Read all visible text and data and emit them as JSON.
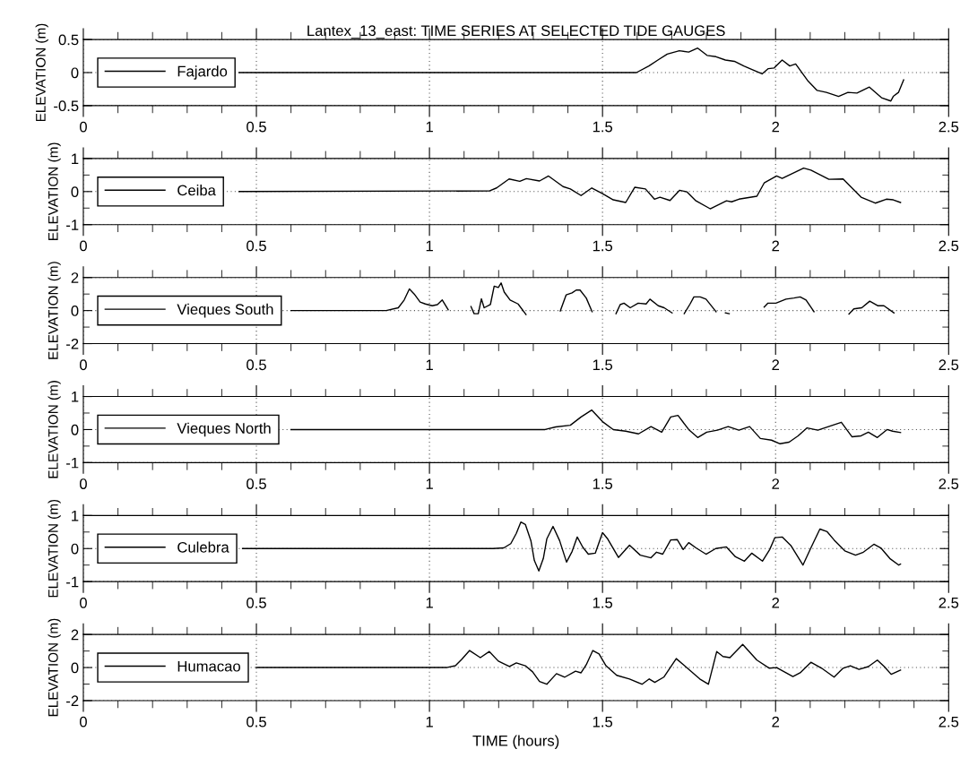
{
  "chart_data": [
    {
      "type": "line",
      "title": "Lantex_13_east: TIME SERIES AT SELECTED TIDE GAUGES",
      "ylabel": "ELEVATION (m)",
      "xlim": [
        0,
        2.5
      ],
      "ylim": [
        -0.5,
        0.5
      ],
      "xticks": [
        0,
        {
          "value": 0.1,
          "label": null
        },
        {
          "value": 0.2,
          "label": null
        },
        {
          "value": 0.3,
          "label": null
        },
        {
          "value": 0.4,
          "label": null
        },
        0.5,
        {
          "value": 0.6,
          "label": null
        },
        {
          "value": 0.7,
          "label": null
        },
        {
          "value": 0.8,
          "label": null
        },
        {
          "value": 0.9,
          "label": null
        },
        1,
        {
          "value": 1.1,
          "label": null
        },
        {
          "value": 1.2,
          "label": null
        },
        {
          "value": 1.3,
          "label": null
        },
        {
          "value": 1.4,
          "label": null
        },
        1.5,
        {
          "value": 1.6,
          "label": null
        },
        {
          "value": 1.7,
          "label": null
        },
        {
          "value": 1.8,
          "label": null
        },
        {
          "value": 1.9,
          "label": null
        },
        2,
        {
          "value": 2.1,
          "label": null
        },
        {
          "value": 2.2,
          "label": null
        },
        {
          "value": 2.3,
          "label": null
        },
        {
          "value": 2.4,
          "label": null
        },
        2.5
      ],
      "yticks": [
        -0.5,
        0,
        0.5
      ],
      "grid": true,
      "legend": "left",
      "series": [
        {
          "name": "Fajardo",
          "color": "#000000",
          "x": [
            0.45,
            1.598,
            1.634,
            1.66,
            1.687,
            1.722,
            1.749,
            1.775,
            1.802,
            1.828,
            1.855,
            1.881,
            1.908,
            1.935,
            1.961,
            1.979,
            1.996,
            2.019,
            2.041,
            2.058,
            2.094,
            2.12,
            2.147,
            2.182,
            2.209,
            2.235,
            2.271,
            2.306,
            2.333,
            2.34,
            2.355,
            2.37
          ],
          "values": [
            0,
            0,
            0.1,
            0.19,
            0.28,
            0.33,
            0.31,
            0.37,
            0.26,
            0.24,
            0.19,
            0.17,
            0.1,
            0.04,
            -0.02,
            0.06,
            0.07,
            0.19,
            0.1,
            0.13,
            -0.13,
            -0.27,
            -0.3,
            -0.36,
            -0.3,
            -0.31,
            -0.22,
            -0.38,
            -0.43,
            -0.36,
            -0.3,
            -0.11
          ]
        }
      ]
    },
    {
      "type": "line",
      "ylabel": "ELEVATION (m)",
      "xlim": [
        0,
        2.5
      ],
      "ylim": [
        -1,
        1
      ],
      "xticks": [
        0,
        {
          "value": 0.1,
          "label": null
        },
        {
          "value": 0.2,
          "label": null
        },
        {
          "value": 0.3,
          "label": null
        },
        {
          "value": 0.4,
          "label": null
        },
        0.5,
        {
          "value": 0.6,
          "label": null
        },
        {
          "value": 0.7,
          "label": null
        },
        {
          "value": 0.8,
          "label": null
        },
        {
          "value": 0.9,
          "label": null
        },
        1,
        {
          "value": 1.1,
          "label": null
        },
        {
          "value": 1.2,
          "label": null
        },
        {
          "value": 1.3,
          "label": null
        },
        {
          "value": 1.4,
          "label": null
        },
        1.5,
        {
          "value": 1.6,
          "label": null
        },
        {
          "value": 1.7,
          "label": null
        },
        {
          "value": 1.8,
          "label": null
        },
        {
          "value": 1.9,
          "label": null
        },
        2,
        {
          "value": 2.1,
          "label": null
        },
        {
          "value": 2.2,
          "label": null
        },
        {
          "value": 2.3,
          "label": null
        },
        {
          "value": 2.4,
          "label": null
        },
        2.5
      ],
      "yticks": [
        -1,
        {
          "value": -0.5,
          "label": null
        },
        0,
        {
          "value": 0.5,
          "label": null
        },
        1
      ],
      "grid": true,
      "legend": "left",
      "series": [
        {
          "name": "Ceiba",
          "color": "#000000",
          "x": [
            0.45,
            1.173,
            1.194,
            1.23,
            1.261,
            1.28,
            1.318,
            1.344,
            1.386,
            1.407,
            1.438,
            1.469,
            1.5,
            1.531,
            1.567,
            1.593,
            1.624,
            1.65,
            1.666,
            1.695,
            1.723,
            1.744,
            1.77,
            1.811,
            1.858,
            1.873,
            1.894,
            1.946,
            1.967,
            2.003,
            2.019,
            2.081,
            2.102,
            2.154,
            2.195,
            2.247,
            2.288,
            2.32,
            2.34,
            2.361
          ],
          "values": [
            0,
            0.02,
            0.11,
            0.38,
            0.31,
            0.39,
            0.32,
            0.47,
            0.15,
            0.08,
            -0.12,
            0.11,
            -0.06,
            -0.25,
            -0.33,
            0.13,
            0.08,
            -0.23,
            -0.17,
            -0.27,
            0.04,
            -0.01,
            -0.28,
            -0.52,
            -0.28,
            -0.31,
            -0.23,
            -0.14,
            0.26,
            0.47,
            0.4,
            0.71,
            0.65,
            0.37,
            0.38,
            -0.17,
            -0.35,
            -0.23,
            -0.25,
            -0.33
          ]
        }
      ]
    },
    {
      "type": "line",
      "ylabel": "ELEVATION (m)",
      "xlim": [
        0,
        2.5
      ],
      "ylim": [
        -2,
        2
      ],
      "xticks": [
        0,
        {
          "value": 0.1,
          "label": null
        },
        {
          "value": 0.2,
          "label": null
        },
        {
          "value": 0.3,
          "label": null
        },
        {
          "value": 0.4,
          "label": null
        },
        0.5,
        {
          "value": 0.6,
          "label": null
        },
        {
          "value": 0.7,
          "label": null
        },
        {
          "value": 0.8,
          "label": null
        },
        {
          "value": 0.9,
          "label": null
        },
        1,
        {
          "value": 1.1,
          "label": null
        },
        {
          "value": 1.2,
          "label": null
        },
        {
          "value": 1.3,
          "label": null
        },
        {
          "value": 1.4,
          "label": null
        },
        1.5,
        {
          "value": 1.6,
          "label": null
        },
        {
          "value": 1.7,
          "label": null
        },
        {
          "value": 1.8,
          "label": null
        },
        {
          "value": 1.9,
          "label": null
        },
        2,
        {
          "value": 2.1,
          "label": null
        },
        {
          "value": 2.2,
          "label": null
        },
        {
          "value": 2.3,
          "label": null
        },
        {
          "value": 2.4,
          "label": null
        },
        2.5
      ],
      "yticks": [
        -2,
        {
          "value": -1,
          "label": null
        },
        0,
        {
          "value": 1,
          "label": null
        },
        2
      ],
      "grid": true,
      "legend": "left",
      "series": [
        {
          "name": "Vieques South",
          "color": "#000000",
          "x": [
            0.6,
            0.875,
            0.91,
            0.927,
            0.942,
            0.956,
            0.973,
            0.988,
            1.008,
            1.023,
            1.037,
            1.054,
            1.09,
            1.12,
            1.129,
            1.141,
            1.15,
            1.158,
            1.176,
            1.187,
            1.199,
            1.207,
            1.216,
            1.233,
            1.256,
            1.279,
            1.33,
            1.378,
            1.395,
            1.412,
            1.424,
            1.435,
            1.453,
            1.47,
            1.5,
            1.539,
            1.551,
            1.562,
            1.58,
            1.603,
            1.626,
            1.637,
            1.661,
            1.678,
            1.701,
            1.72,
            1.736,
            1.753,
            1.764,
            1.782,
            1.799,
            1.828,
            1.84,
            1.855,
            1.866,
            1.9,
            1.967,
            1.978,
            2.001,
            2.03,
            2.053,
            2.071,
            2.088,
            2.111,
            2.16,
            2.212,
            2.226,
            2.249,
            2.272,
            2.296,
            2.313,
            2.342
          ],
          "values": [
            0,
            0,
            0.17,
            0.64,
            1.31,
            1.0,
            0.52,
            0.4,
            0.29,
            0.36,
            0.64,
            0.05,
            null,
            0.24,
            -0.19,
            -0.19,
            0.71,
            0.17,
            0.36,
            1.48,
            1.4,
            1.67,
            1.12,
            0.64,
            0.4,
            -0.24,
            null,
            -0.02,
            0.95,
            1.07,
            1.24,
            1.24,
            0.76,
            -0.07,
            null,
            -0.19,
            0.36,
            0.45,
            0.17,
            0.45,
            0.4,
            0.69,
            0.29,
            0.17,
            -0.14,
            null,
            -0.19,
            0.4,
            0.83,
            0.83,
            0.69,
            -0.07,
            null,
            -0.14,
            -0.19,
            null,
            0.21,
            0.45,
            0.45,
            0.69,
            0.76,
            0.83,
            0.64,
            -0.07,
            null,
            -0.21,
            0.1,
            0.17,
            0.57,
            0.29,
            0.29,
            -0.14
          ]
        }
      ]
    },
    {
      "type": "line",
      "ylabel": "ELEVATION (m)",
      "xlim": [
        0,
        2.5
      ],
      "ylim": [
        -1,
        1
      ],
      "xticks": [
        0,
        {
          "value": 0.1,
          "label": null
        },
        {
          "value": 0.2,
          "label": null
        },
        {
          "value": 0.3,
          "label": null
        },
        {
          "value": 0.4,
          "label": null
        },
        0.5,
        {
          "value": 0.6,
          "label": null
        },
        {
          "value": 0.7,
          "label": null
        },
        {
          "value": 0.8,
          "label": null
        },
        {
          "value": 0.9,
          "label": null
        },
        1,
        {
          "value": 1.1,
          "label": null
        },
        {
          "value": 1.2,
          "label": null
        },
        {
          "value": 1.3,
          "label": null
        },
        {
          "value": 1.4,
          "label": null
        },
        1.5,
        {
          "value": 1.6,
          "label": null
        },
        {
          "value": 1.7,
          "label": null
        },
        {
          "value": 1.8,
          "label": null
        },
        {
          "value": 1.9,
          "label": null
        },
        2,
        {
          "value": 2.1,
          "label": null
        },
        {
          "value": 2.2,
          "label": null
        },
        {
          "value": 2.3,
          "label": null
        },
        {
          "value": 2.4,
          "label": null
        },
        2.5
      ],
      "yticks": [
        -1,
        {
          "value": -0.5,
          "label": null
        },
        0,
        {
          "value": 0.5,
          "label": null
        },
        1
      ],
      "grid": true,
      "legend": "left",
      "series": [
        {
          "name": "Vieques North",
          "color": "#000000",
          "x": [
            0.6,
            1.334,
            1.365,
            1.407,
            1.438,
            1.469,
            1.5,
            1.531,
            1.567,
            1.604,
            1.64,
            1.671,
            1.697,
            1.718,
            1.749,
            1.775,
            1.801,
            1.832,
            1.863,
            1.894,
            1.925,
            1.956,
            1.988,
            2.013,
            2.039,
            2.065,
            2.091,
            2.122,
            2.153,
            2.19,
            2.221,
            2.247,
            2.268,
            2.294,
            2.322,
            2.338,
            2.361
          ],
          "values": [
            0,
            0,
            0.08,
            0.13,
            0.38,
            0.59,
            0.24,
            0,
            -0.05,
            -0.13,
            0.09,
            -0.08,
            0.38,
            0.43,
            0,
            -0.24,
            -0.08,
            -0.02,
            0.09,
            -0.02,
            0.09,
            -0.27,
            -0.32,
            -0.43,
            -0.38,
            -0.19,
            0.05,
            -0.02,
            0.09,
            0.22,
            -0.22,
            -0.19,
            -0.08,
            -0.24,
            0,
            -0.05,
            -0.09
          ]
        }
      ]
    },
    {
      "type": "line",
      "ylabel": "ELEVATION (m)",
      "xlim": [
        0,
        2.5
      ],
      "ylim": [
        -1,
        1
      ],
      "xticks": [
        0,
        {
          "value": 0.1,
          "label": null
        },
        {
          "value": 0.2,
          "label": null
        },
        {
          "value": 0.3,
          "label": null
        },
        {
          "value": 0.4,
          "label": null
        },
        0.5,
        {
          "value": 0.6,
          "label": null
        },
        {
          "value": 0.7,
          "label": null
        },
        {
          "value": 0.8,
          "label": null
        },
        {
          "value": 0.9,
          "label": null
        },
        1,
        {
          "value": 1.1,
          "label": null
        },
        {
          "value": 1.2,
          "label": null
        },
        {
          "value": 1.3,
          "label": null
        },
        {
          "value": 1.4,
          "label": null
        },
        1.5,
        {
          "value": 1.6,
          "label": null
        },
        {
          "value": 1.7,
          "label": null
        },
        {
          "value": 1.8,
          "label": null
        },
        {
          "value": 1.9,
          "label": null
        },
        2,
        {
          "value": 2.1,
          "label": null
        },
        {
          "value": 2.2,
          "label": null
        },
        {
          "value": 2.3,
          "label": null
        },
        {
          "value": 2.4,
          "label": null
        },
        2.5
      ],
      "yticks": [
        -1,
        {
          "value": -0.5,
          "label": null
        },
        0,
        {
          "value": 0.5,
          "label": null
        },
        1
      ],
      "grid": true,
      "legend": "left",
      "series": [
        {
          "name": "Culebra",
          "color": "#000000",
          "x": [
            0.46,
            1.184,
            1.215,
            1.235,
            1.251,
            1.264,
            1.277,
            1.293,
            1.303,
            1.316,
            1.329,
            1.339,
            1.357,
            1.376,
            1.396,
            1.412,
            1.427,
            1.443,
            1.459,
            1.479,
            1.5,
            1.515,
            1.546,
            1.578,
            1.609,
            1.64,
            1.656,
            1.674,
            1.697,
            1.716,
            1.733,
            1.749,
            1.77,
            1.799,
            1.827,
            1.858,
            1.884,
            1.91,
            1.931,
            1.962,
            1.983,
            1.998,
            2.019,
            2.045,
            2.079,
            2.102,
            2.128,
            2.149,
            2.169,
            2.2,
            2.231,
            2.252,
            2.284,
            2.304,
            2.33,
            2.356,
            2.361
          ],
          "values": [
            0,
            0,
            0.02,
            0.15,
            0.46,
            0.8,
            0.73,
            0.24,
            -0.36,
            -0.68,
            -0.3,
            0.29,
            0.67,
            0.24,
            -0.41,
            -0.09,
            0.35,
            0.04,
            -0.17,
            -0.14,
            0.48,
            0.29,
            -0.27,
            0.1,
            -0.2,
            -0.28,
            -0.11,
            -0.17,
            0.26,
            0.27,
            -0.03,
            0.18,
            0.02,
            -0.17,
            0,
            0.05,
            -0.25,
            -0.38,
            -0.14,
            -0.38,
            -0.03,
            0.33,
            0.35,
            0.08,
            -0.5,
            0.02,
            0.59,
            0.51,
            0.26,
            -0.07,
            -0.2,
            -0.12,
            0.13,
            0.02,
            -0.3,
            -0.5,
            -0.47
          ]
        }
      ]
    },
    {
      "type": "line",
      "ylabel": "ELEVATION (m)",
      "xlabel": "TIME (hours)",
      "xlim": [
        0,
        2.5
      ],
      "ylim": [
        -2,
        2
      ],
      "xticks": [
        0,
        {
          "value": 0.1,
          "label": null
        },
        {
          "value": 0.2,
          "label": null
        },
        {
          "value": 0.3,
          "label": null
        },
        {
          "value": 0.4,
          "label": null
        },
        0.5,
        {
          "value": 0.6,
          "label": null
        },
        {
          "value": 0.7,
          "label": null
        },
        {
          "value": 0.8,
          "label": null
        },
        {
          "value": 0.9,
          "label": null
        },
        1,
        {
          "value": 1.1,
          "label": null
        },
        {
          "value": 1.2,
          "label": null
        },
        {
          "value": 1.3,
          "label": null
        },
        {
          "value": 1.4,
          "label": null
        },
        1.5,
        {
          "value": 1.6,
          "label": null
        },
        {
          "value": 1.7,
          "label": null
        },
        {
          "value": 1.8,
          "label": null
        },
        {
          "value": 1.9,
          "label": null
        },
        2,
        {
          "value": 2.1,
          "label": null
        },
        {
          "value": 2.2,
          "label": null
        },
        {
          "value": 2.3,
          "label": null
        },
        {
          "value": 2.4,
          "label": null
        },
        2.5
      ],
      "yticks": [
        -2,
        {
          "value": -1,
          "label": null
        },
        0,
        {
          "value": 1,
          "label": null
        },
        2
      ],
      "grid": true,
      "legend": "left",
      "series": [
        {
          "name": "Humacao",
          "color": "#000000",
          "x": [
            0.5,
            1.049,
            1.075,
            1.093,
            1.116,
            1.147,
            1.173,
            1.199,
            1.231,
            1.251,
            1.277,
            1.298,
            1.318,
            1.339,
            1.367,
            1.391,
            1.422,
            1.438,
            1.453,
            1.472,
            1.49,
            1.51,
            1.541,
            1.578,
            1.614,
            1.635,
            1.651,
            1.677,
            1.713,
            1.734,
            1.781,
            1.806,
            1.83,
            1.848,
            1.868,
            1.905,
            1.946,
            1.982,
            2.003,
            2.05,
            2.071,
            2.102,
            2.133,
            2.169,
            2.195,
            2.216,
            2.241,
            2.268,
            2.294,
            2.314,
            2.334,
            2.361
          ],
          "values": [
            0,
            0,
            0.11,
            0.49,
            1.03,
            0.6,
            0.97,
            0.39,
            0.06,
            0.28,
            0.11,
            -0.26,
            -0.84,
            -1.01,
            -0.37,
            -0.58,
            -0.22,
            -0.32,
            0.17,
            1.03,
            0.82,
            0.11,
            -0.47,
            -0.69,
            -1.01,
            -0.69,
            -0.9,
            -0.58,
            0.54,
            0.17,
            -0.69,
            -1.01,
            0.97,
            0.67,
            0.6,
            1.4,
            0.45,
            -0.04,
            0,
            -0.54,
            -0.32,
            0.32,
            -0.04,
            -0.58,
            -0.04,
            0.11,
            -0.11,
            0.06,
            0.45,
            0.06,
            -0.41,
            -0.15
          ]
        }
      ]
    }
  ]
}
